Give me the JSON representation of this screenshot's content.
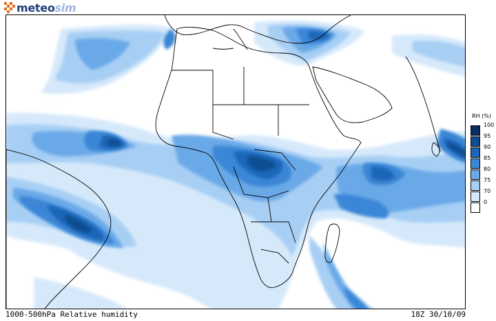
{
  "brand": {
    "prefix": "meteo",
    "suffix": "sim",
    "icon": "checker-logo-icon"
  },
  "map": {
    "field": "relative-humidity",
    "coastline_color": "#000000",
    "background_color": "#ffffff"
  },
  "footer": {
    "left": "1000-500hPa Relative humidity",
    "right": "18Z 30/10/09"
  },
  "legend": {
    "title": "RH (%)",
    "items": [
      {
        "label": "100",
        "color": "#0b2f5e"
      },
      {
        "label": "95",
        "color": "#0f4d91"
      },
      {
        "label": "90",
        "color": "#1c66b8"
      },
      {
        "label": "85",
        "color": "#3a86d6"
      },
      {
        "label": "80",
        "color": "#6aa9e8"
      },
      {
        "label": "75",
        "color": "#a7cff4"
      },
      {
        "label": "70",
        "color": "#d6e9fb"
      },
      {
        "label": "0",
        "color": "#ffffff"
      }
    ]
  }
}
